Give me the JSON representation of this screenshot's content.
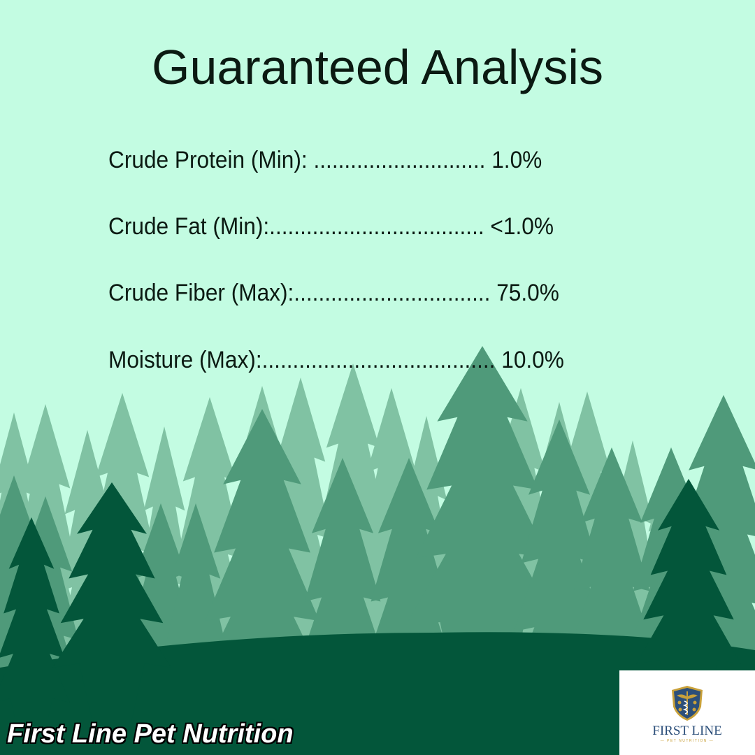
{
  "title": "Guaranteed Analysis",
  "analysis": [
    {
      "text": "Crude Protein (Min): ............................ 1.0%"
    },
    {
      "text": "Crude Fat (Min):................................... <1.0%"
    },
    {
      "text": "Crude Fiber (Max):................................ 75.0%"
    },
    {
      "text": "Moisture (Max):...................................... 10.0%"
    }
  ],
  "brand_caption": "First Line Pet Nutrition",
  "logo": {
    "name": "FIRST LINE",
    "sub": "— PET NUTRITION —",
    "icon": "caduceus-shield-icon"
  },
  "colors": {
    "sky": "#c3fce2",
    "tree_light": "#80c2a3",
    "tree_mid": "#4f9a7a",
    "tree_dark": "#03563a"
  }
}
